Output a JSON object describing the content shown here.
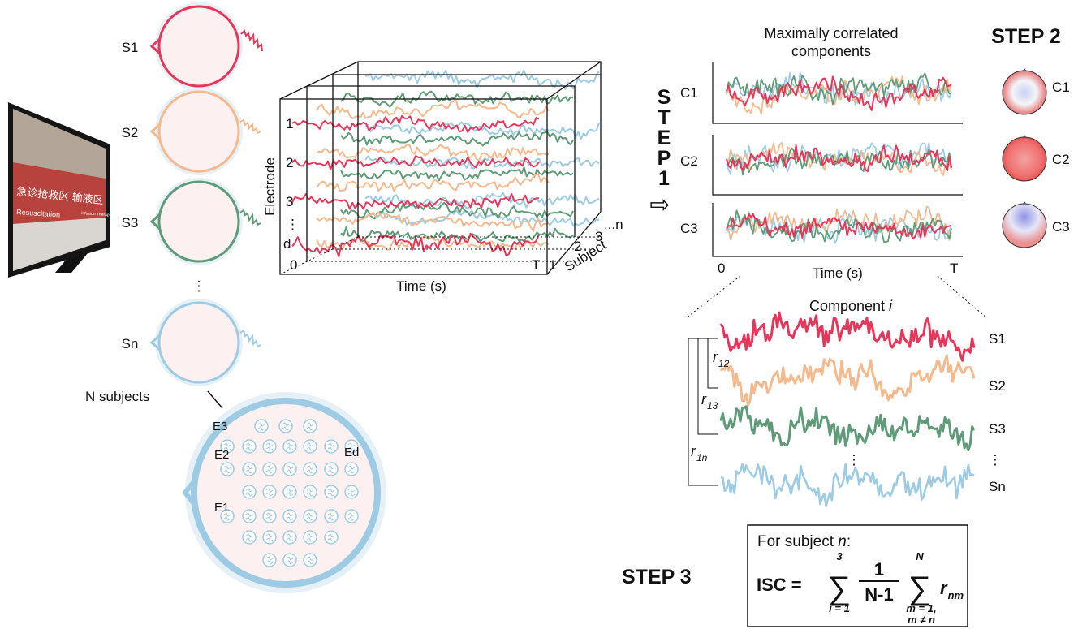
{
  "colors": {
    "s1": "#e8365a",
    "s2": "#f5b98e",
    "s3": "#5f9b78",
    "sn": "#9ecbe4",
    "head_fill": "#fdf0f0",
    "ink": "#111111"
  },
  "stimulus": {
    "screen_text_cn": "急诊抢救区  输液区",
    "screen_text_en": "Resuscitation",
    "screen_text_en2": "Infusion Therapy"
  },
  "subjects": {
    "labels": [
      "S1",
      "S2",
      "S3",
      "Sn"
    ],
    "ellipsis": "⋮",
    "caption": "N subjects"
  },
  "electrodes": {
    "labels": [
      "E3",
      "E2",
      "Ed",
      "E1"
    ]
  },
  "cube": {
    "y_axis_label": "Electrode",
    "row_labels": [
      "1",
      "2",
      "3",
      "⋮",
      "d"
    ],
    "x_axis_label": "Time (s)",
    "x_start": "0",
    "x_end": "T",
    "depth_label": "Subject",
    "depth_ticks": [
      "1",
      "2",
      "3",
      "...n"
    ]
  },
  "step1": {
    "letters": [
      "S",
      "T",
      "E",
      "P",
      "1"
    ],
    "arrow": "⇨"
  },
  "components": {
    "title_line1": "Maximally correlated",
    "title_line2": "components",
    "labels": [
      "C1",
      "C2",
      "C3"
    ],
    "x_label": "Time (s)",
    "x_start": "0",
    "x_end": "T"
  },
  "step2": {
    "title": "STEP 2",
    "map_labels": [
      "C1",
      "C2",
      "C3"
    ]
  },
  "component_i": {
    "title": "Component ",
    "title_var": "i",
    "subject_labels": [
      "S1",
      "S2",
      "S3",
      "⋮",
      "Sn"
    ],
    "mid_ellipsis": "⋮",
    "correlations": [
      {
        "r": "r",
        "sub": "12"
      },
      {
        "r": "r",
        "sub": "13"
      },
      {
        "r": "r",
        "sub": "1n"
      }
    ]
  },
  "step3": {
    "title": "STEP 3",
    "box_line1": "For subject ",
    "box_line1_var": "n",
    "box_line1_end": ":",
    "lhs": "ISC = ",
    "sum1_top": "3",
    "sum1_bottom": "i = 1",
    "frac_num": "1",
    "frac_den": "N-1",
    "sum2_top": "N",
    "sum2_bottom1": "m = 1,",
    "sum2_bottom2": "m ≠ n",
    "rhs_var": "r",
    "rhs_sub": "nm"
  }
}
